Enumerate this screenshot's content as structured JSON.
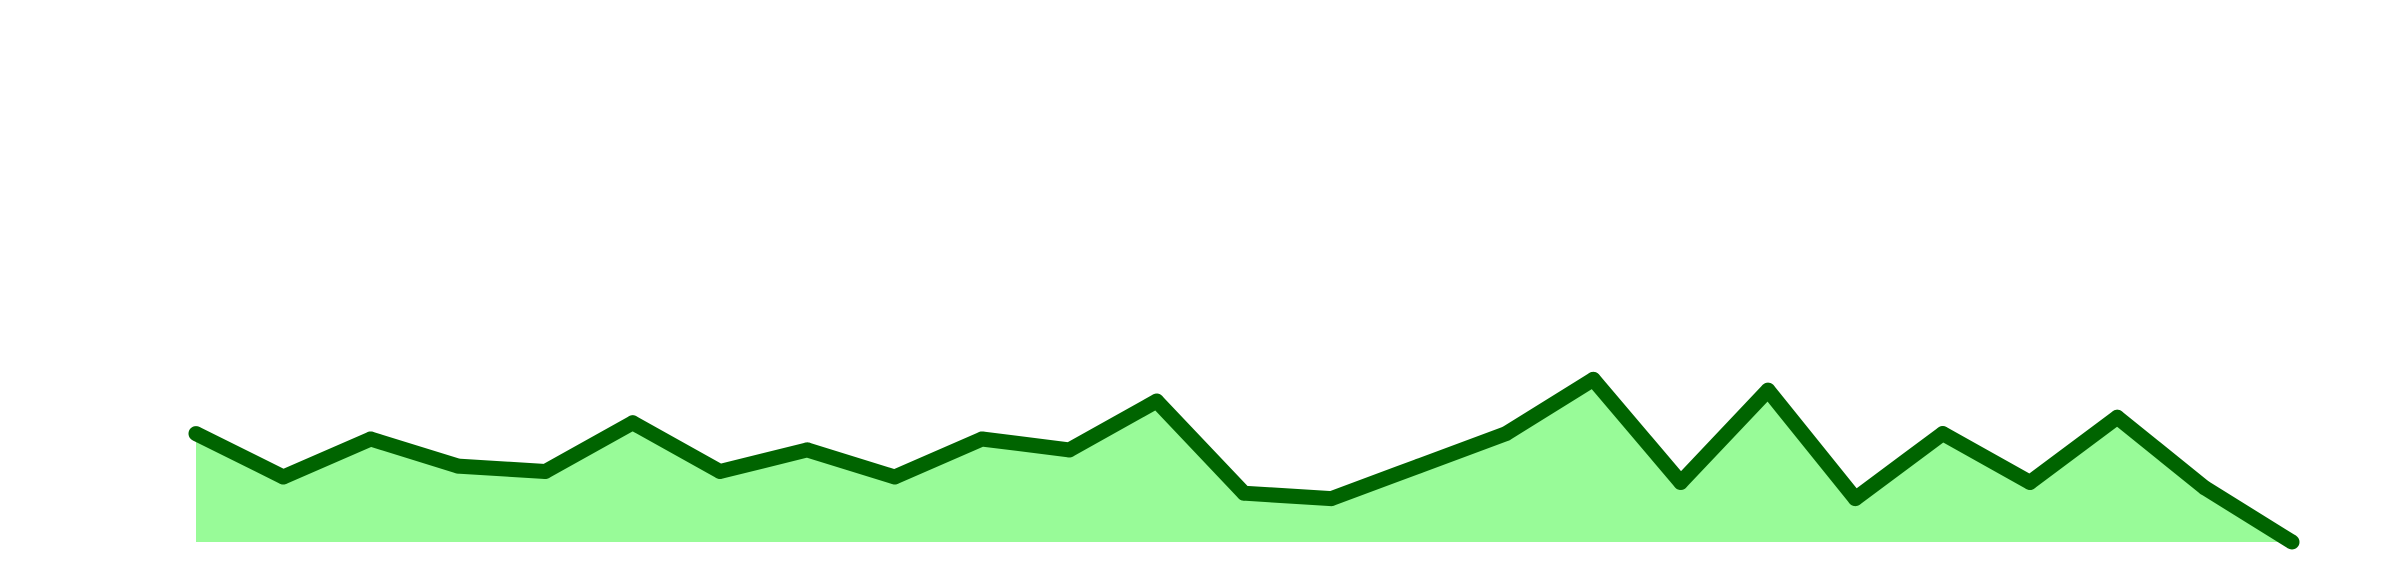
{
  "chart_data": {
    "type": "area",
    "title": "",
    "xlabel": "",
    "ylabel": "",
    "x": [
      0,
      1,
      2,
      3,
      4,
      5,
      6,
      7,
      8,
      9,
      10,
      11,
      12,
      13,
      14,
      15,
      16,
      17,
      18,
      19,
      20,
      21,
      22,
      23,
      24
    ],
    "series": [
      {
        "values": [
          20,
          12,
          19,
          14,
          13,
          22,
          13,
          17,
          12,
          19,
          17,
          26,
          9,
          8,
          14,
          20,
          30,
          11,
          28,
          8,
          20,
          11,
          23,
          10,
          0
        ]
      }
    ],
    "ylim": [
      0,
      100
    ],
    "xlim": [
      0,
      24
    ],
    "grid": false,
    "legend": false,
    "line_color": "#006400",
    "fill_color": "#98FB98",
    "background": "#ffffff"
  }
}
